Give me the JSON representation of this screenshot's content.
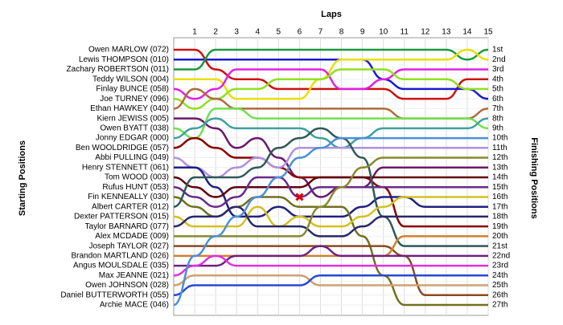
{
  "chart_data": {
    "type": "lap-chart",
    "title": "Laps",
    "y_label_left": "Starting Positions",
    "y_label_right": "Finishing Positions",
    "x": [
      0,
      1,
      2,
      3,
      4,
      5,
      6,
      7,
      8,
      9,
      10,
      11,
      12,
      13,
      14,
      15
    ],
    "xlim": [
      0,
      15
    ],
    "xticks": [
      1,
      2,
      3,
      4,
      5,
      6,
      7,
      8,
      9,
      10,
      11,
      12,
      13,
      14,
      15
    ],
    "ylim": [
      1,
      27
    ],
    "grid": true,
    "finishing_positions": [
      "1st",
      "2nd",
      "3rd",
      "4th",
      "5th",
      "6th",
      "7th",
      "8th",
      "9th",
      "10th",
      "11th",
      "12th",
      "13th",
      "14th",
      "15th",
      "16th",
      "17th",
      "18th",
      "19th",
      "20th",
      "21st",
      "22nd",
      "23rd",
      "24th",
      "25th",
      "26th",
      "27th"
    ],
    "series": [
      {
        "name": "Owen MARLOW (072)",
        "color": "#cc1010",
        "values": [
          1,
          1,
          3,
          4,
          4,
          5,
          5,
          5,
          5,
          5,
          5,
          6,
          6,
          6,
          4,
          4
        ]
      },
      {
        "name": "Lewis THOMPSON (010)",
        "color": "#1a1ad0",
        "values": [
          2,
          2,
          2,
          2,
          2,
          2,
          2,
          2,
          2,
          2,
          4,
          5,
          5,
          5,
          5,
          6
        ]
      },
      {
        "name": "Zachary ROBERTSON (011)",
        "color": "#1a9a3a",
        "values": [
          3,
          3,
          1,
          1,
          1,
          1,
          1,
          1,
          1,
          1,
          1,
          1,
          1,
          1,
          2,
          1
        ]
      },
      {
        "name": "Teddy WILSON (004)",
        "color": "#e8e000",
        "values": [
          4,
          4,
          4,
          6,
          6,
          6,
          6,
          4,
          2,
          2,
          2,
          2,
          2,
          2,
          1,
          2
        ]
      },
      {
        "name": "Finlay BUNCE (058)",
        "color": "#e020e0",
        "values": [
          5,
          6,
          5,
          3,
          3,
          3,
          3,
          3,
          5,
          5,
          4,
          3,
          3,
          3,
          3,
          3
        ]
      },
      {
        "name": "Joe TURNEY (096)",
        "color": "#90e020",
        "values": [
          6,
          7,
          6,
          5,
          5,
          4,
          4,
          4,
          3,
          3,
          3,
          4,
          4,
          4,
          5,
          5
        ]
      },
      {
        "name": "Ethan HAWKEY (040)",
        "color": "#b06a3a",
        "values": [
          7,
          5,
          6,
          7,
          7,
          7,
          7,
          7,
          7,
          7,
          7,
          8,
          8,
          8,
          8,
          7
        ]
      },
      {
        "name": "Kiern JEWISS (005)",
        "color": "#6a1a6a",
        "values": [
          8,
          8,
          9,
          11,
          10,
          12,
          14,
          16,
          15,
          15,
          13,
          13,
          13,
          13,
          13,
          13
        ]
      },
      {
        "name": "Owen BYATT (038)",
        "color": "#70e050",
        "values": [
          9,
          10,
          7,
          7,
          8,
          8,
          8,
          8,
          8,
          8,
          8,
          8,
          8,
          8,
          8,
          9
        ]
      },
      {
        "name": "Jonny EDGAR (000)",
        "color": "#40a0a0",
        "values": [
          10,
          9,
          8,
          9,
          9,
          9,
          9,
          10,
          11,
          10,
          9,
          9,
          9,
          9,
          9,
          8
        ]
      },
      {
        "name": "Ben WOOLDRIDGE (057)",
        "color": "#8b0000",
        "values": [
          11,
          10,
          11,
          12,
          12,
          13,
          14,
          14,
          14,
          14,
          15,
          19,
          19,
          19,
          19,
          19
        ]
      },
      {
        "name": "Abbi PULLING (049)",
        "color": "#b090e0",
        "values": [
          12,
          13,
          14,
          13,
          12,
          13,
          11,
          11,
          11,
          11,
          11,
          11,
          11,
          11,
          11,
          11
        ]
      },
      {
        "name": "Henry STENNETT (061)",
        "color": "#202080",
        "values": [
          13,
          13,
          15,
          18,
          18,
          17,
          18,
          18,
          18,
          17,
          16,
          16,
          17,
          17,
          17,
          17
        ]
      },
      {
        "name": "Tom WOOD (003)",
        "color": "#600010",
        "values": [
          14,
          15,
          16,
          15,
          15,
          15,
          15,
          14,
          14,
          14,
          14,
          14,
          14,
          14,
          14,
          14
        ]
      },
      {
        "name": "Rufus HUNT (053)",
        "color": "#6a2a8a",
        "values": [
          15,
          16,
          17,
          16,
          14,
          14,
          16,
          15,
          15,
          15,
          15,
          15,
          15,
          15,
          15,
          15
        ]
      },
      {
        "name": "Fin KENNEALLY (030)",
        "color": "#707020",
        "values": [
          16,
          17,
          18,
          17,
          16,
          16,
          17,
          17,
          17,
          20,
          24,
          27,
          27,
          27,
          27,
          27
        ]
      },
      {
        "name": "Albert CARTER (012)",
        "color": "#305858",
        "values": [
          17,
          14,
          14,
          14,
          13,
          11,
          10,
          9,
          10,
          12,
          18,
          21,
          21,
          21,
          21,
          21
        ]
      },
      {
        "name": "Dexter PATTERSON (015)",
        "color": "#d4c020",
        "values": [
          18,
          19,
          19,
          19,
          17,
          19,
          18,
          19,
          19,
          18,
          17,
          16,
          16,
          16,
          16,
          16
        ]
      },
      {
        "name": "Taylor BARNARD (077)",
        "color": "#28286a",
        "values": [
          19,
          18,
          18,
          17,
          19,
          19,
          19,
          20,
          20,
          19,
          18,
          18,
          18,
          18,
          18,
          18
        ]
      },
      {
        "name": "Alex MCDADE (009)",
        "color": "#888830",
        "values": [
          20,
          20,
          20,
          20,
          20,
          20,
          20,
          17,
          15,
          13,
          12,
          12,
          12,
          12,
          12,
          12
        ]
      },
      {
        "name": "Joseph TAYLOR (027)",
        "color": "#8a4a20",
        "values": [
          21,
          21,
          21,
          21,
          21,
          21,
          21,
          21,
          21,
          21,
          21,
          22,
          26,
          26,
          26,
          26
        ]
      },
      {
        "name": "Brandon MARTLAND (026)",
        "color": "#d08030",
        "values": [
          22,
          22,
          22,
          22,
          22,
          22,
          22,
          22,
          22,
          22,
          22,
          20,
          20,
          20,
          20,
          20
        ]
      },
      {
        "name": "Angus MOULSDALE (035)",
        "color": "#702080",
        "values": [
          23,
          23,
          23,
          22,
          22,
          22,
          22,
          21,
          22,
          22,
          22,
          22,
          22,
          22,
          22,
          22
        ]
      },
      {
        "name": "Max JEANNE (021)",
        "color": "#e030e0",
        "values": [
          24,
          23,
          22,
          23,
          23,
          23,
          23,
          23,
          23,
          23,
          23,
          23,
          23,
          23,
          23,
          23
        ]
      },
      {
        "name": "Owen JOHNSON (028)",
        "color": "#d0a070",
        "values": [
          25,
          24,
          24,
          24,
          24,
          24,
          24,
          25,
          25,
          25,
          25,
          25,
          25,
          25,
          25,
          25
        ]
      },
      {
        "name": "Daniel BUTTERWORTH (055)",
        "color": "#2a4ad0",
        "values": [
          26,
          25,
          25,
          25,
          25,
          25,
          25,
          24,
          24,
          24,
          24,
          24,
          24,
          24,
          24,
          24
        ]
      },
      {
        "name": "Archie MACE (046)",
        "color": "#4a90d8",
        "values": [
          27,
          22,
          20,
          18,
          16,
          14,
          12,
          11,
          10,
          10,
          10,
          10,
          10,
          10,
          10,
          10
        ]
      }
    ]
  }
}
